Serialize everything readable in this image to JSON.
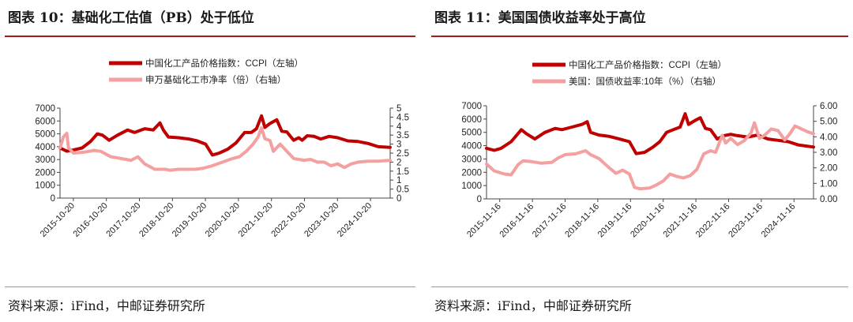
{
  "figures": [
    {
      "title": "图表 10：基础化工估值（PB）处于低位",
      "source": "资料来源：iFind，中邮证券研究所"
    },
    {
      "title": "图表 11：美国国债收益率处于高位",
      "source": "资料来源：iFind，中邮证券研究所"
    }
  ],
  "colors": {
    "ccpi": "#c00000",
    "secondary": "#f4a0a0",
    "rule": "#a61c1c"
  },
  "chart_data": [
    {
      "type": "line",
      "title": "图表 10：基础化工估值（PB）处于低位",
      "x_ticks": [
        "2015-10-20",
        "2016-10-20",
        "2017-10-20",
        "2018-10-20",
        "2019-10-20",
        "2020-10-20",
        "2021-10-20",
        "2022-10-20",
        "2023-10-20",
        "2024-10-20"
      ],
      "x_range": [
        2015.8,
        2025.55
      ],
      "y_left": {
        "range": [
          0,
          7000
        ],
        "ticks": [
          "0",
          "1000",
          "2000",
          "3000",
          "4000",
          "5000",
          "6000",
          "7000"
        ]
      },
      "y_right": {
        "range": [
          0,
          5
        ],
        "ticks": [
          "0",
          "0.5",
          "1",
          "1.5",
          "2",
          "2.5",
          "3",
          "3.5",
          "4",
          "4.5",
          "5"
        ]
      },
      "series": [
        {
          "name": "中国化工产品价格指数：CCPI（左轴）",
          "axis": "left",
          "color": "#c00000",
          "points": [
            [
              2015.8,
              3900
            ],
            [
              2016.0,
              3650
            ],
            [
              2016.2,
              3750
            ],
            [
              2016.45,
              3900
            ],
            [
              2016.7,
              4400
            ],
            [
              2016.9,
              5000
            ],
            [
              2017.05,
              4900
            ],
            [
              2017.25,
              4500
            ],
            [
              2017.5,
              4900
            ],
            [
              2017.8,
              5300
            ],
            [
              2018.0,
              5100
            ],
            [
              2018.3,
              5400
            ],
            [
              2018.55,
              5300
            ],
            [
              2018.75,
              5850
            ],
            [
              2018.85,
              5300
            ],
            [
              2019.0,
              4750
            ],
            [
              2019.3,
              4700
            ],
            [
              2019.6,
              4600
            ],
            [
              2019.85,
              4450
            ],
            [
              2020.1,
              4200
            ],
            [
              2020.3,
              3350
            ],
            [
              2020.5,
              3500
            ],
            [
              2020.75,
              3800
            ],
            [
              2021.0,
              4300
            ],
            [
              2021.25,
              5100
            ],
            [
              2021.45,
              5100
            ],
            [
              2021.6,
              5400
            ],
            [
              2021.75,
              6400
            ],
            [
              2021.85,
              5500
            ],
            [
              2022.0,
              5800
            ],
            [
              2022.2,
              6100
            ],
            [
              2022.35,
              5200
            ],
            [
              2022.5,
              5150
            ],
            [
              2022.7,
              4500
            ],
            [
              2022.85,
              4700
            ],
            [
              2022.95,
              4500
            ],
            [
              2023.1,
              4850
            ],
            [
              2023.3,
              4800
            ],
            [
              2023.5,
              4600
            ],
            [
              2023.75,
              4800
            ],
            [
              2024.0,
              4700
            ],
            [
              2024.3,
              4450
            ],
            [
              2024.6,
              4400
            ],
            [
              2024.9,
              4250
            ],
            [
              2025.2,
              4000
            ],
            [
              2025.55,
              3950
            ]
          ]
        },
        {
          "name": "申万基础化工市净率（倍）（右轴）",
          "axis": "right",
          "color": "#f4a0a0",
          "points": [
            [
              2015.8,
              2.8
            ],
            [
              2015.9,
              3.4
            ],
            [
              2016.0,
              3.6
            ],
            [
              2016.05,
              2.8
            ],
            [
              2016.2,
              2.5
            ],
            [
              2016.5,
              2.55
            ],
            [
              2016.8,
              2.65
            ],
            [
              2017.0,
              2.6
            ],
            [
              2017.3,
              2.3
            ],
            [
              2017.6,
              2.2
            ],
            [
              2017.9,
              2.1
            ],
            [
              2018.1,
              2.3
            ],
            [
              2018.3,
              1.9
            ],
            [
              2018.6,
              1.6
            ],
            [
              2018.9,
              1.6
            ],
            [
              2019.05,
              1.55
            ],
            [
              2019.3,
              1.6
            ],
            [
              2019.5,
              1.6
            ],
            [
              2019.8,
              1.6
            ],
            [
              2020.0,
              1.65
            ],
            [
              2020.3,
              1.8
            ],
            [
              2020.6,
              2.0
            ],
            [
              2020.9,
              2.2
            ],
            [
              2021.1,
              2.3
            ],
            [
              2021.3,
              2.6
            ],
            [
              2021.5,
              3.0
            ],
            [
              2021.65,
              3.4
            ],
            [
              2021.75,
              3.9
            ],
            [
              2021.85,
              3.3
            ],
            [
              2022.0,
              3.2
            ],
            [
              2022.1,
              2.6
            ],
            [
              2022.3,
              3.0
            ],
            [
              2022.5,
              2.6
            ],
            [
              2022.7,
              2.2
            ],
            [
              2023.0,
              2.1
            ],
            [
              2023.2,
              2.15
            ],
            [
              2023.4,
              2.0
            ],
            [
              2023.6,
              2.0
            ],
            [
              2023.8,
              1.8
            ],
            [
              2024.0,
              1.9
            ],
            [
              2024.2,
              1.7
            ],
            [
              2024.4,
              1.9
            ],
            [
              2024.6,
              2.0
            ],
            [
              2024.9,
              2.05
            ],
            [
              2025.2,
              2.05
            ],
            [
              2025.55,
              2.1
            ]
          ]
        }
      ]
    },
    {
      "type": "line",
      "title": "图表 11：美国国债收益率处于高位",
      "x_ticks": [
        "2015-11-16",
        "2016-11-16",
        "2017-11-16",
        "2018-11-16",
        "2019-11-16",
        "2020-11-16",
        "2021-11-16",
        "2022-11-16",
        "2023-11-16",
        "2024-11-16"
      ],
      "x_range": [
        2015.87,
        2025.55
      ],
      "y_left": {
        "range": [
          0,
          7000
        ],
        "ticks": [
          "0",
          "1000",
          "2000",
          "3000",
          "4000",
          "5000",
          "6000",
          "7000"
        ]
      },
      "y_right": {
        "range": [
          0,
          6
        ],
        "ticks": [
          "0.00",
          "1.00",
          "2.00",
          "3.00",
          "4.00",
          "5.00",
          "6.00"
        ]
      },
      "series": [
        {
          "name": "中国化工产品价格指数：CCPI（左轴）",
          "axis": "left",
          "color": "#c00000",
          "points": [
            [
              2015.87,
              3800
            ],
            [
              2016.1,
              3650
            ],
            [
              2016.3,
              3800
            ],
            [
              2016.6,
              4300
            ],
            [
              2016.9,
              5200
            ],
            [
              2017.05,
              4900
            ],
            [
              2017.3,
              4500
            ],
            [
              2017.6,
              5000
            ],
            [
              2017.9,
              5300
            ],
            [
              2018.1,
              5200
            ],
            [
              2018.4,
              5400
            ],
            [
              2018.7,
              5600
            ],
            [
              2018.85,
              5800
            ],
            [
              2018.95,
              5000
            ],
            [
              2019.2,
              4800
            ],
            [
              2019.5,
              4700
            ],
            [
              2019.8,
              4500
            ],
            [
              2020.1,
              4300
            ],
            [
              2020.3,
              3400
            ],
            [
              2020.55,
              3500
            ],
            [
              2020.8,
              3900
            ],
            [
              2021.0,
              4300
            ],
            [
              2021.2,
              5000
            ],
            [
              2021.4,
              5200
            ],
            [
              2021.6,
              5400
            ],
            [
              2021.75,
              6400
            ],
            [
              2021.85,
              5600
            ],
            [
              2022.05,
              5900
            ],
            [
              2022.2,
              6100
            ],
            [
              2022.35,
              5300
            ],
            [
              2022.5,
              5200
            ],
            [
              2022.7,
              4500
            ],
            [
              2022.9,
              4750
            ],
            [
              2023.1,
              4850
            ],
            [
              2023.3,
              4750
            ],
            [
              2023.6,
              4650
            ],
            [
              2023.9,
              4800
            ],
            [
              2024.2,
              4500
            ],
            [
              2024.5,
              4400
            ],
            [
              2024.8,
              4300
            ],
            [
              2025.1,
              4050
            ],
            [
              2025.55,
              3900
            ]
          ]
        },
        {
          "name": "美国：国债收益率:10年（%）（右轴）",
          "axis": "right",
          "color": "#f4a0a0",
          "points": [
            [
              2015.87,
              2.25
            ],
            [
              2016.1,
              1.8
            ],
            [
              2016.4,
              1.6
            ],
            [
              2016.6,
              1.55
            ],
            [
              2016.8,
              2.2
            ],
            [
              2016.95,
              2.45
            ],
            [
              2017.2,
              2.4
            ],
            [
              2017.5,
              2.3
            ],
            [
              2017.8,
              2.35
            ],
            [
              2018.0,
              2.65
            ],
            [
              2018.2,
              2.85
            ],
            [
              2018.5,
              2.9
            ],
            [
              2018.8,
              3.1
            ],
            [
              2018.95,
              2.85
            ],
            [
              2019.2,
              2.6
            ],
            [
              2019.5,
              2.0
            ],
            [
              2019.7,
              1.65
            ],
            [
              2019.9,
              1.85
            ],
            [
              2020.1,
              1.6
            ],
            [
              2020.25,
              0.75
            ],
            [
              2020.4,
              0.65
            ],
            [
              2020.7,
              0.7
            ],
            [
              2020.9,
              0.9
            ],
            [
              2021.1,
              1.15
            ],
            [
              2021.3,
              1.6
            ],
            [
              2021.5,
              1.45
            ],
            [
              2021.7,
              1.35
            ],
            [
              2021.9,
              1.5
            ],
            [
              2022.1,
              1.9
            ],
            [
              2022.3,
              2.9
            ],
            [
              2022.5,
              3.1
            ],
            [
              2022.65,
              3.0
            ],
            [
              2022.85,
              4.1
            ],
            [
              2022.95,
              3.6
            ],
            [
              2023.1,
              3.9
            ],
            [
              2023.3,
              3.5
            ],
            [
              2023.5,
              3.75
            ],
            [
              2023.7,
              4.25
            ],
            [
              2023.8,
              4.9
            ],
            [
              2023.95,
              3.9
            ],
            [
              2024.1,
              4.1
            ],
            [
              2024.3,
              4.5
            ],
            [
              2024.5,
              4.4
            ],
            [
              2024.7,
              3.8
            ],
            [
              2024.85,
              4.2
            ],
            [
              2025.0,
              4.7
            ],
            [
              2025.2,
              4.5
            ],
            [
              2025.4,
              4.3
            ],
            [
              2025.55,
              4.2
            ]
          ]
        }
      ]
    }
  ]
}
